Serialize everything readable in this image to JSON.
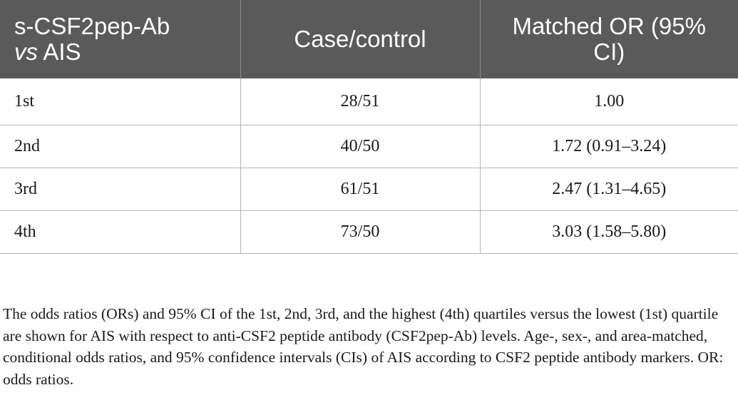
{
  "table": {
    "headers": {
      "col1_line1": "s-CSF2pep-Ab",
      "col1_vs": "vs",
      "col1_rest": " AIS",
      "col2": "Case/control",
      "col3_line1": "Matched OR (95%",
      "col3_line2": "CI)"
    },
    "rows": [
      {
        "quartile": "1st",
        "case_control": "28/51",
        "or_ci": "1.00"
      },
      {
        "quartile": "2nd",
        "case_control": "40/50",
        "or_ci": "1.72 (0.91–3.24)"
      },
      {
        "quartile": "3rd",
        "case_control": "61/51",
        "or_ci": "2.47 (1.31–4.65)"
      },
      {
        "quartile": "4th",
        "case_control": "73/50",
        "or_ci": "3.03 (1.58–5.80)"
      }
    ]
  },
  "footnote": "The odds ratios (ORs) and 95% CI of the 1st, 2nd, 3rd, and the highest (4th) quartiles versus the lowest (1st) quartile are shown for AIS with respect to anti-CSF2 peptide antibody (CSF2pep-Ab) levels. Age-, sex-, and area-matched, conditional odds ratios, and 95% confidence intervals (CIs) of AIS according to CSF2 peptide antibody markers. OR: odds ratios."
}
